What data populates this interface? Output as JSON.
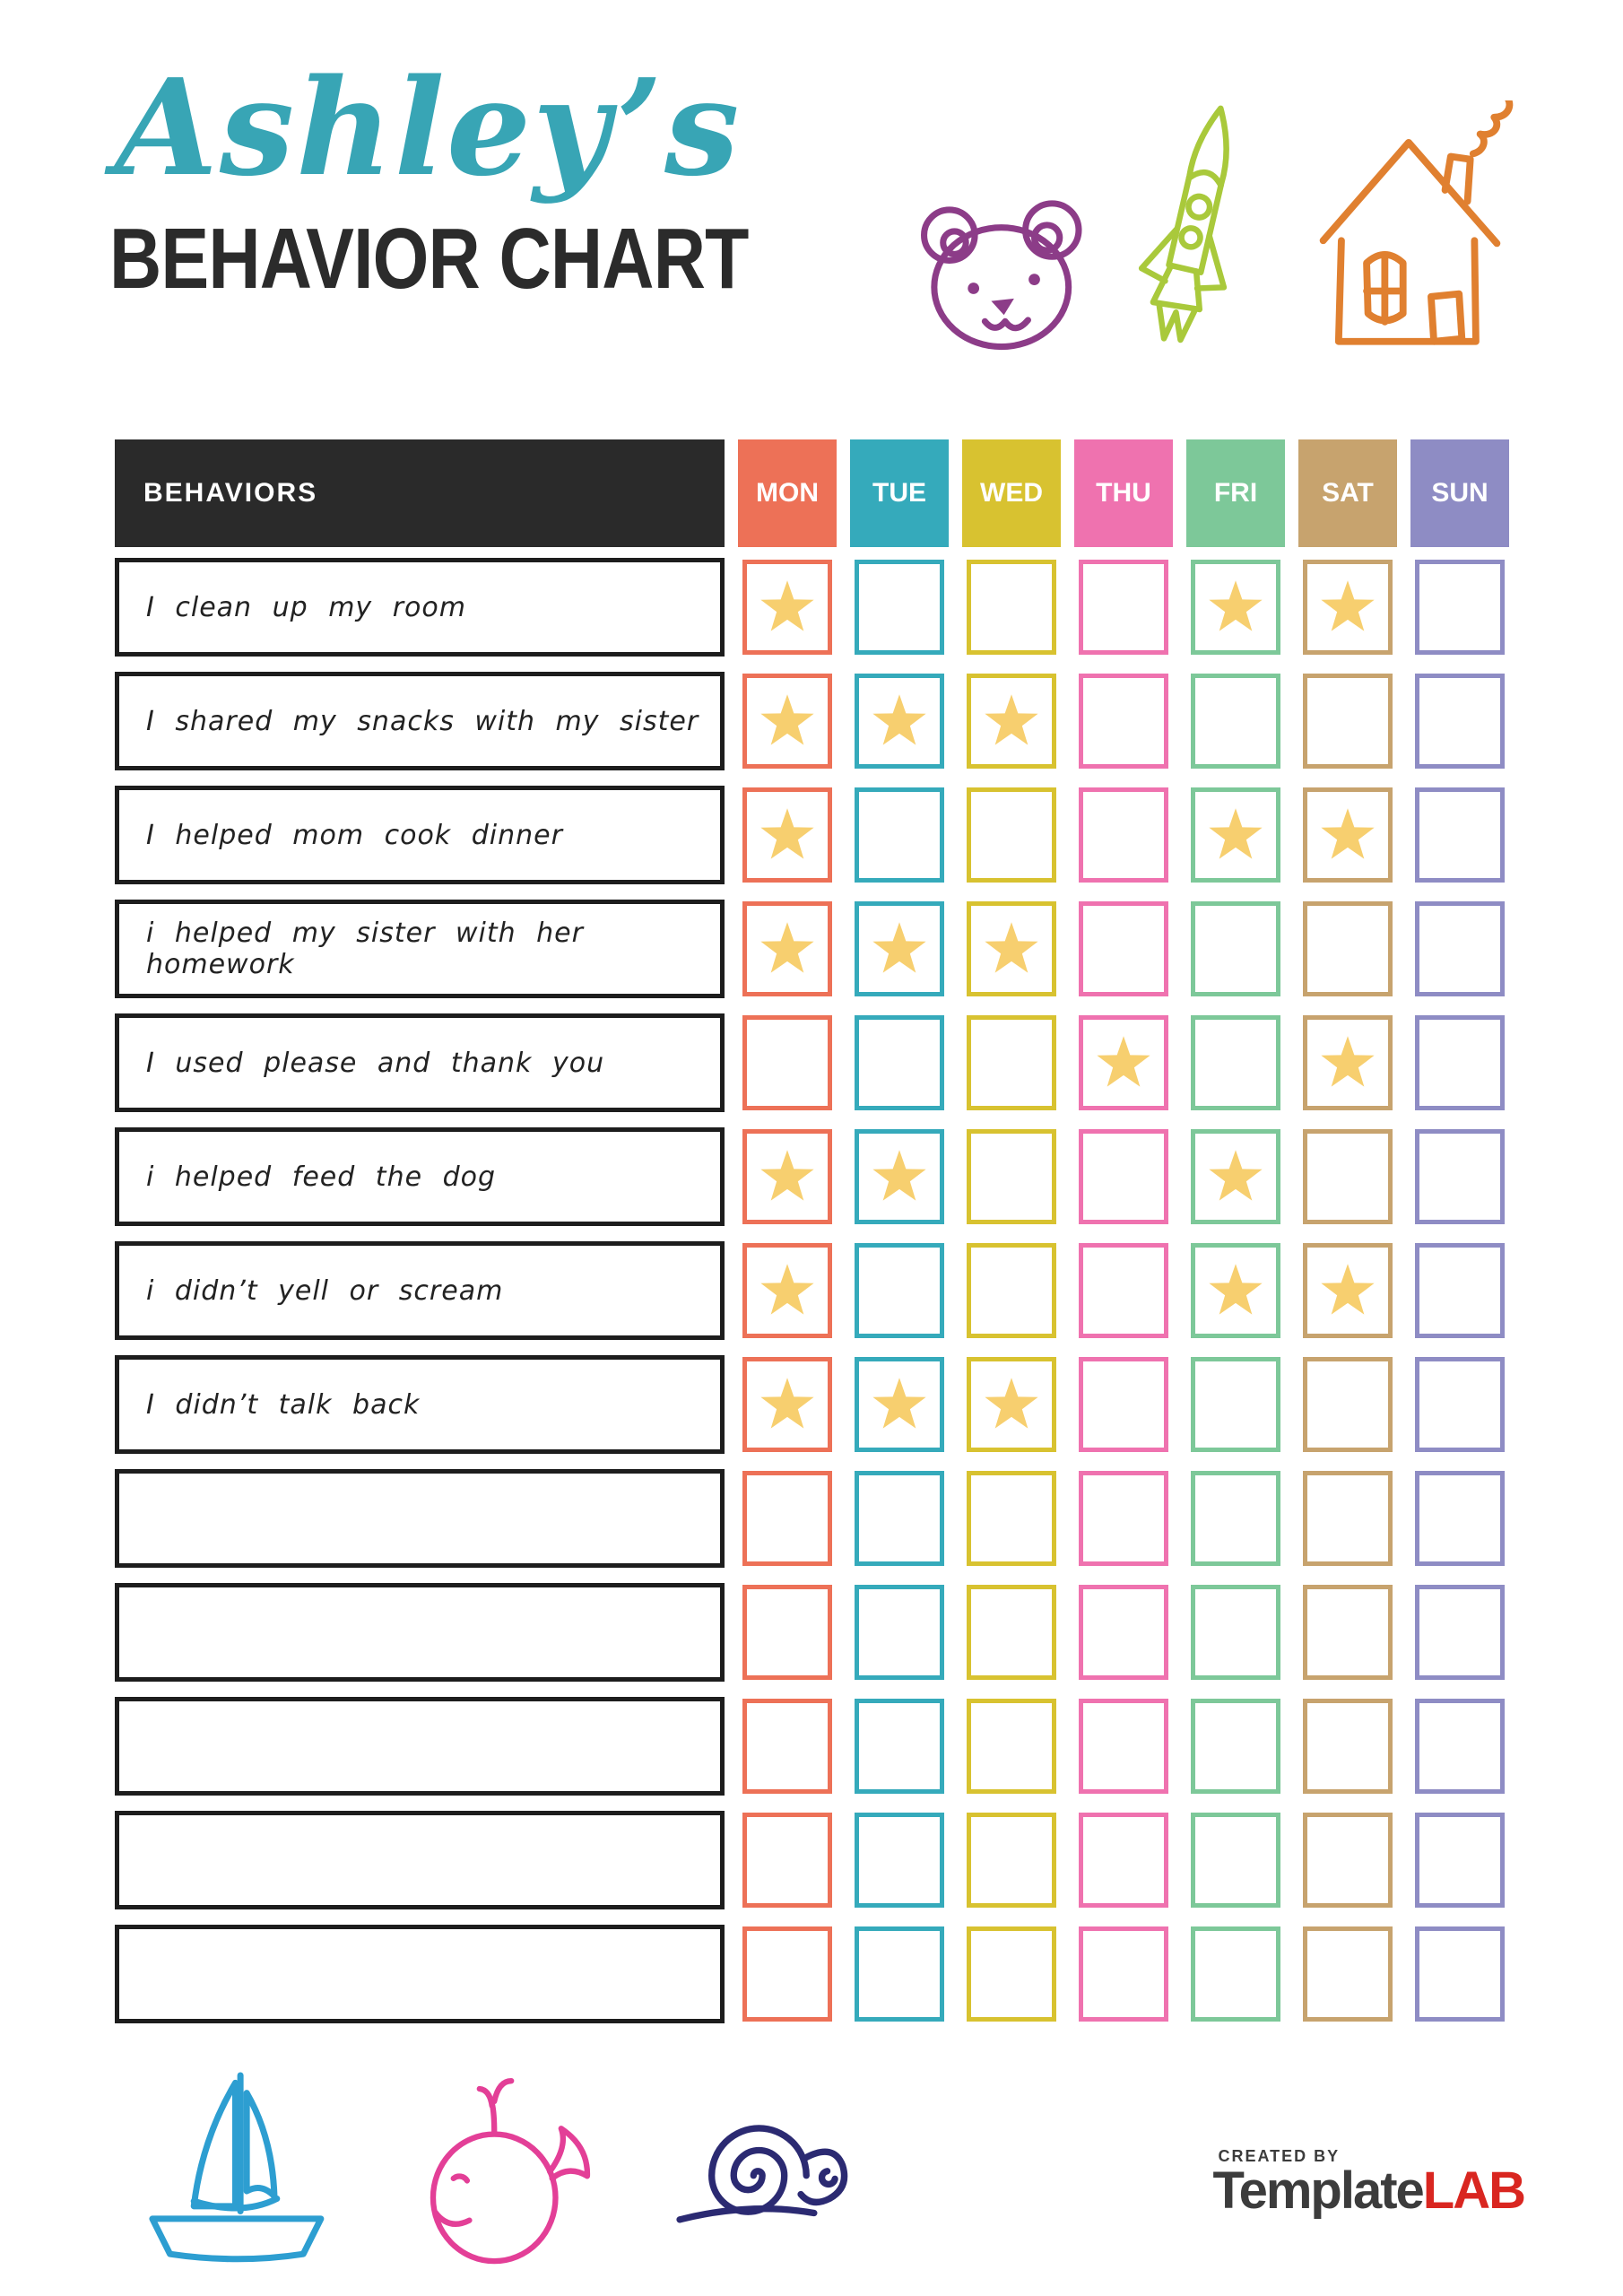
{
  "header": {
    "title_script": "Ashley’s",
    "title_main": "BEHAVIOR CHART"
  },
  "chart": {
    "behaviors_header": "BEHAVIORS",
    "star_color": "#f7cf6f",
    "days": [
      {
        "label": "MON",
        "color": "#ed7157"
      },
      {
        "label": "TUE",
        "color": "#35aabb"
      },
      {
        "label": "WED",
        "color": "#d8c230"
      },
      {
        "label": "THU",
        "color": "#ef72af"
      },
      {
        "label": "FRI",
        "color": "#7dc899"
      },
      {
        "label": "SAT",
        "color": "#c7a36e"
      },
      {
        "label": "SUN",
        "color": "#8e8cc4"
      }
    ],
    "rows": [
      {
        "behavior": "I clean up my room",
        "stars": [
          1,
          0,
          0,
          0,
          1,
          1,
          0
        ]
      },
      {
        "behavior": "I shared my snacks with my sister",
        "stars": [
          1,
          1,
          1,
          0,
          0,
          0,
          0
        ]
      },
      {
        "behavior": "I helped mom cook dinner",
        "stars": [
          1,
          0,
          0,
          0,
          1,
          1,
          0
        ]
      },
      {
        "behavior": "i helped my sister with her homework",
        "stars": [
          1,
          1,
          1,
          0,
          0,
          0,
          0
        ]
      },
      {
        "behavior": "I used please and thank you",
        "stars": [
          0,
          0,
          0,
          1,
          0,
          1,
          0
        ]
      },
      {
        "behavior": "i helped feed the dog",
        "stars": [
          1,
          1,
          0,
          0,
          1,
          0,
          0
        ]
      },
      {
        "behavior": "i didn’t yell or scream",
        "stars": [
          1,
          0,
          0,
          0,
          1,
          1,
          0
        ]
      },
      {
        "behavior": "I didn’t talk back",
        "stars": [
          1,
          1,
          1,
          0,
          0,
          0,
          0
        ]
      },
      {
        "behavior": "",
        "stars": [
          0,
          0,
          0,
          0,
          0,
          0,
          0
        ]
      },
      {
        "behavior": "",
        "stars": [
          0,
          0,
          0,
          0,
          0,
          0,
          0
        ]
      },
      {
        "behavior": "",
        "stars": [
          0,
          0,
          0,
          0,
          0,
          0,
          0
        ]
      },
      {
        "behavior": "",
        "stars": [
          0,
          0,
          0,
          0,
          0,
          0,
          0
        ]
      },
      {
        "behavior": "",
        "stars": [
          0,
          0,
          0,
          0,
          0,
          0,
          0
        ]
      }
    ]
  },
  "footer": {
    "created_by": "CREATED BY",
    "brand_primary": "Template",
    "brand_accent": "LAB"
  },
  "icons": {
    "top": [
      "bear-icon",
      "rocket-icon",
      "house-icon"
    ],
    "bottom": [
      "sailboat-icon",
      "whale-icon",
      "snail-icon"
    ],
    "cell": "star-icon"
  },
  "colors": {
    "title_script": "#38a5b5",
    "title_main": "#2b2b2b",
    "header_bg": "#2a2a2a",
    "row_border": "#1d1d1d",
    "bear": "#8c3c88",
    "rocket": "#a9c93b",
    "house": "#e08030",
    "sailboat": "#2d9ed1",
    "whale": "#e33f97",
    "snail": "#2b2a72",
    "logo_dark": "#3c3c3c",
    "logo_red": "#d92620"
  }
}
